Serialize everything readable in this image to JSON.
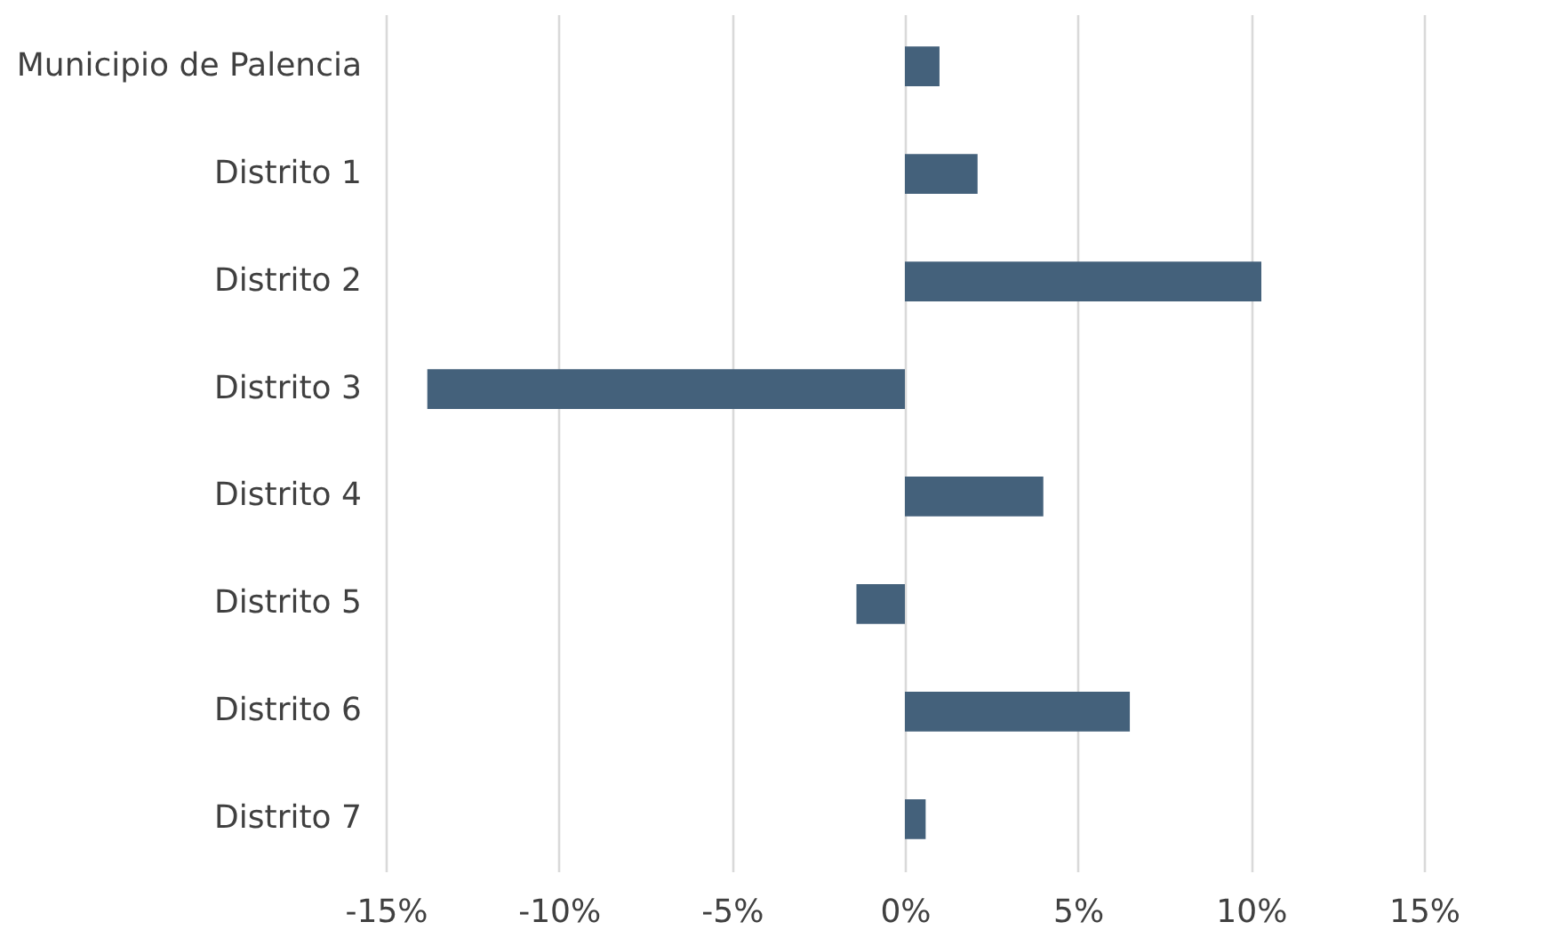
{
  "chart_data": {
    "type": "bar",
    "orientation": "horizontal",
    "categories": [
      "Municipio de Palencia",
      "Distrito 1",
      "Distrito 2",
      "Distrito 3",
      "Distrito 4",
      "Distrito 5",
      "Distrito 6",
      "Distrito 7"
    ],
    "values": [
      1.0,
      2.1,
      10.3,
      -13.8,
      4.0,
      -1.4,
      6.5,
      0.6
    ],
    "color": "#44617b",
    "xlim": [
      -15,
      15
    ],
    "xticks": [
      {
        "value": -15,
        "label": "-15%"
      },
      {
        "value": -10,
        "label": "-10%"
      },
      {
        "value": -5,
        "label": "-5%"
      },
      {
        "value": 0,
        "label": "0%"
      },
      {
        "value": 5,
        "label": "5%"
      },
      {
        "value": 10,
        "label": "10%"
      },
      {
        "value": 15,
        "label": "15%"
      }
    ],
    "grid": "x"
  }
}
